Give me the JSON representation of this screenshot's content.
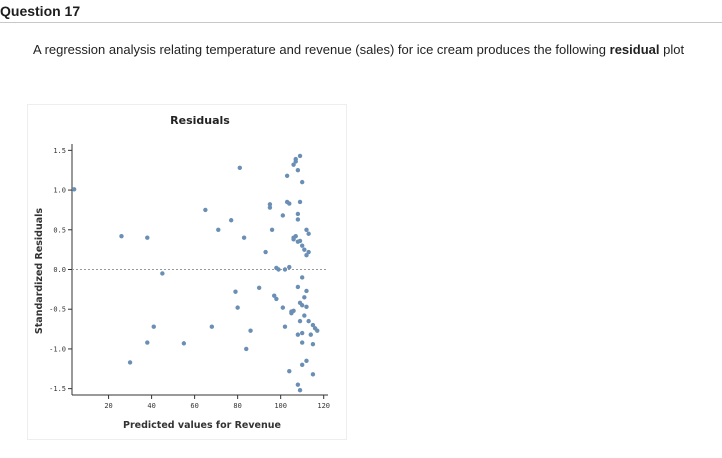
{
  "question": {
    "title": "Question 17",
    "text_before": "A regression analysis relating temperature and revenue (sales) for ice cream produces the following ",
    "text_bold": "residual",
    "text_after": " plot"
  },
  "colors": {
    "point": "#6b8fb4",
    "axis": "#333333",
    "zero_line": "#999999"
  },
  "chart_data": {
    "type": "scatter",
    "title": "Residuals",
    "xlabel": "Predicted values for Revenue",
    "ylabel": "Standardized Residuals",
    "xlim": [
      3,
      122
    ],
    "ylim": [
      -1.58,
      1.58
    ],
    "x_ticks": [
      20,
      40,
      60,
      80,
      100,
      120
    ],
    "x_tick_labels": [
      "20",
      "40",
      "60",
      "80",
      "100",
      "120"
    ],
    "y_ticks": [
      1.5,
      1.0,
      0.5,
      0.0,
      -0.5,
      -1.0,
      -1.5
    ],
    "y_tick_labels": [
      "1.5",
      "1.0",
      "0.5",
      "0.0",
      "-0.5",
      "-1.0",
      "-1.5"
    ],
    "reference_line": 0,
    "grid": false,
    "points": [
      [
        4,
        1.01
      ],
      [
        26,
        0.42
      ],
      [
        38,
        0.4
      ],
      [
        45,
        -0.05
      ],
      [
        30,
        -1.17
      ],
      [
        38,
        -0.92
      ],
      [
        41,
        -0.72
      ],
      [
        55,
        -0.93
      ],
      [
        65,
        0.75
      ],
      [
        68,
        -0.72
      ],
      [
        71,
        0.5
      ],
      [
        77,
        0.62
      ],
      [
        81,
        1.28
      ],
      [
        79,
        -0.28
      ],
      [
        80,
        -0.48
      ],
      [
        83,
        0.4
      ],
      [
        84,
        -1.0
      ],
      [
        86,
        -0.77
      ],
      [
        90,
        -0.23
      ],
      [
        93,
        0.22
      ],
      [
        95,
        0.82
      ],
      [
        95,
        0.78
      ],
      [
        96,
        0.5
      ],
      [
        97,
        -0.33
      ],
      [
        98,
        -0.37
      ],
      [
        98,
        0.02
      ],
      [
        99,
        0.0
      ],
      [
        101,
        -0.48
      ],
      [
        101,
        0.68
      ],
      [
        102,
        -0.72
      ],
      [
        102,
        0.0
      ],
      [
        103,
        0.85
      ],
      [
        103,
        1.18
      ],
      [
        104,
        0.83
      ],
      [
        104,
        0.03
      ],
      [
        104,
        -1.28
      ],
      [
        105,
        -0.55
      ],
      [
        105,
        -0.53
      ],
      [
        106,
        0.4
      ],
      [
        106,
        0.38
      ],
      [
        106,
        -0.52
      ],
      [
        106,
        1.32
      ],
      [
        107,
        0.42
      ],
      [
        107,
        1.36
      ],
      [
        107,
        1.39
      ],
      [
        108,
        0.7
      ],
      [
        108,
        0.63
      ],
      [
        108,
        0.35
      ],
      [
        108,
        1.25
      ],
      [
        108,
        -0.22
      ],
      [
        108,
        -0.82
      ],
      [
        108,
        -1.45
      ],
      [
        109,
        1.43
      ],
      [
        109,
        0.85
      ],
      [
        109,
        0.36
      ],
      [
        109,
        -0.42
      ],
      [
        109,
        -0.65
      ],
      [
        109,
        -1.52
      ],
      [
        110,
        1.1
      ],
      [
        110,
        0.3
      ],
      [
        110,
        -0.1
      ],
      [
        110,
        -0.45
      ],
      [
        110,
        -0.8
      ],
      [
        110,
        -0.92
      ],
      [
        110,
        -1.2
      ],
      [
        111,
        0.25
      ],
      [
        111,
        -0.35
      ],
      [
        111,
        -0.58
      ],
      [
        112,
        0.5
      ],
      [
        112,
        0.18
      ],
      [
        112,
        -0.27
      ],
      [
        112,
        -0.47
      ],
      [
        112,
        -1.15
      ],
      [
        113,
        0.45
      ],
      [
        113,
        0.22
      ],
      [
        113,
        -0.65
      ],
      [
        114,
        -0.82
      ],
      [
        115,
        -0.7
      ],
      [
        115,
        -0.94
      ],
      [
        115,
        -1.32
      ],
      [
        116,
        -0.74
      ],
      [
        117,
        -0.77
      ]
    ]
  }
}
